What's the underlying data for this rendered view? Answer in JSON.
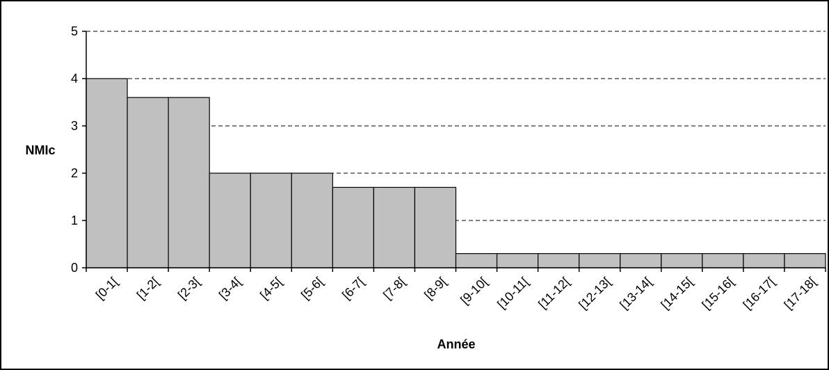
{
  "chart_data": {
    "type": "bar",
    "title": "",
    "xlabel": "Année",
    "ylabel": "NMIc",
    "ylim": [
      0,
      5
    ],
    "yticks": [
      "0",
      "1",
      "2",
      "3",
      "4",
      "5"
    ],
    "grid": "horizontal-dashed",
    "categories": [
      "[0-1[",
      "[1-2[",
      "[2-3[",
      "[3-4[",
      "[4-5[",
      "[5-6[",
      "[6-7[",
      "[7-8[",
      "[8-9[",
      "[9-10[",
      "[10-11[",
      "[11-12[",
      "[12-13[",
      "[13-14[",
      "[14-15[",
      "[15-16[",
      "[16-17[",
      "[17-18["
    ],
    "values": [
      4.0,
      3.6,
      3.6,
      2.0,
      2.0,
      2.0,
      1.7,
      1.7,
      1.7,
      0.3,
      0.3,
      0.3,
      0.3,
      0.3,
      0.3,
      0.3,
      0.3,
      0.3
    ],
    "colors": {
      "bar_fill": "#c0c0c0",
      "bar_stroke": "#000000",
      "grid": "#000000",
      "axis": "#000000",
      "frame": "#000000"
    }
  }
}
